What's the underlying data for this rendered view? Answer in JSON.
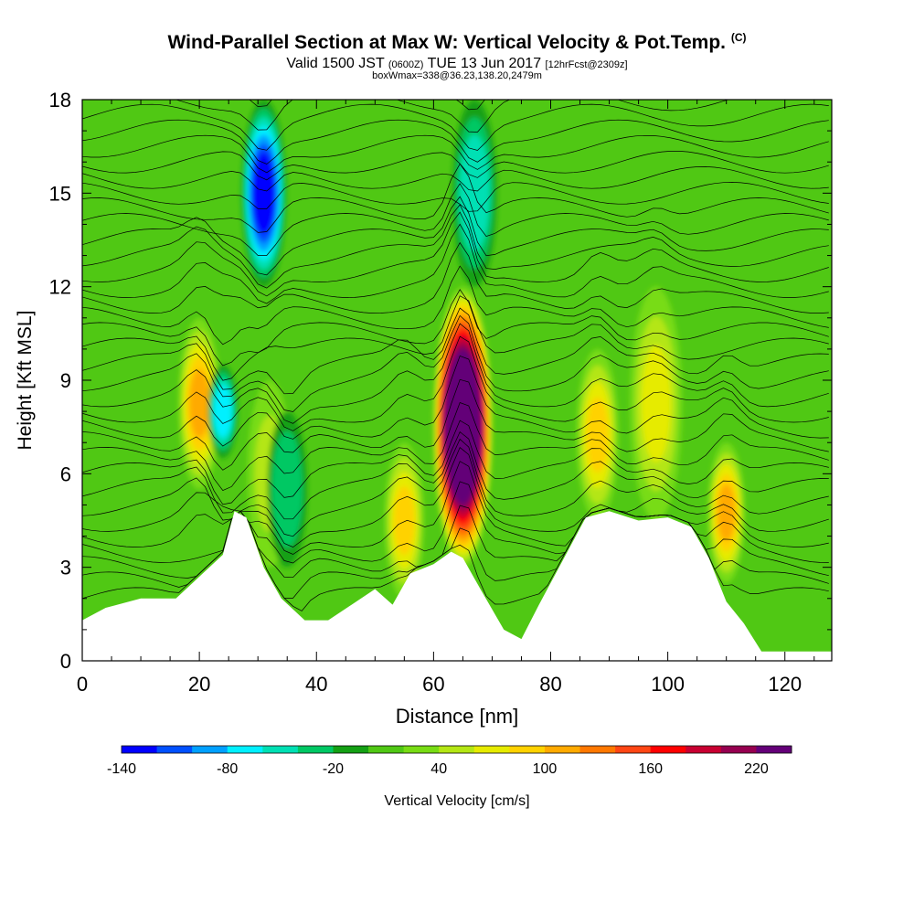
{
  "header": {
    "title": "Wind-Parallel Section at Max W: Vertical Velocity & Pot.Temp.",
    "copyright": "(C)",
    "valid_prefix": "Valid 1500 JST",
    "valid_utc": "(0600Z)",
    "valid_date": "TUE 13 Jun 2017",
    "forecast_info": "[12hrFcst@2309z]",
    "subtitle2": "boxWmax=338@36.23,138.20,2479m"
  },
  "chart_data": {
    "type": "heatmap",
    "title": "Wind-Parallel Section at Max W: Vertical Velocity & Pot.Temp.",
    "xlabel": "Distance [nm]",
    "ylabel": "Height [Kft MSL]",
    "xlim": [
      0,
      128
    ],
    "ylim": [
      0,
      18
    ],
    "x_ticks": [
      "0",
      "20",
      "40",
      "60",
      "80",
      "100",
      "120"
    ],
    "y_ticks": [
      "0",
      "3",
      "6",
      "9",
      "12",
      "15",
      "18"
    ],
    "x_tick_values": [
      0,
      20,
      40,
      60,
      80,
      100,
      120
    ],
    "y_tick_values": [
      0,
      3,
      6,
      9,
      12,
      15,
      18
    ],
    "colorbar": {
      "label": "Vertical Velocity [cm/s]",
      "range": [
        -140,
        240
      ],
      "tick_labels": [
        "-140",
        "-80",
        "-20",
        "40",
        "100",
        "160",
        "220"
      ],
      "tick_values": [
        -140,
        -80,
        -20,
        40,
        100,
        160,
        220
      ],
      "colors": [
        "#0000ff",
        "#0050ff",
        "#00a0ff",
        "#00f0ff",
        "#00e0b4",
        "#00c864",
        "#14a014",
        "#50c814",
        "#78dc14",
        "#b4e614",
        "#e6eb00",
        "#ffd200",
        "#ffaa00",
        "#ff7800",
        "#ff4614",
        "#ff0000",
        "#c80032",
        "#960050",
        "#640078"
      ]
    },
    "updrafts": [
      {
        "x": 20,
        "z_min": 5.5,
        "z_max": 11,
        "w_max": 100
      },
      {
        "x": 32,
        "z_min": 3,
        "z_max": 9,
        "w_max": 50
      },
      {
        "x": 55,
        "z_min": 2,
        "z_max": 7,
        "w_max": 90
      },
      {
        "x": 65,
        "z_min": 3,
        "z_max": 12,
        "w_max": 338
      },
      {
        "x": 88,
        "z_min": 4.5,
        "z_max": 10,
        "w_max": 90
      },
      {
        "x": 98,
        "z_min": 4.5,
        "z_max": 12,
        "w_max": 60
      },
      {
        "x": 110,
        "z_min": 2.5,
        "z_max": 7,
        "w_max": 100
      }
    ],
    "downdrafts": [
      {
        "x": 31,
        "z_min": 12,
        "z_max": 18,
        "w_min": -140
      },
      {
        "x": 24,
        "z_min": 6.5,
        "z_max": 9.5,
        "w_min": -80
      },
      {
        "x": 67,
        "z_min": 12,
        "z_max": 18,
        "w_min": -60
      },
      {
        "x": 35,
        "z_min": 3,
        "z_max": 8,
        "w_min": -40
      }
    ],
    "terrain_kft": {
      "x": [
        0,
        4,
        10,
        16,
        20,
        24,
        26,
        28,
        31,
        34,
        38,
        42,
        46,
        50,
        53,
        56,
        60,
        63,
        65,
        68,
        72,
        75,
        78,
        82,
        86,
        90,
        95,
        100,
        104,
        107,
        110,
        113,
        116,
        120,
        124,
        128
      ],
      "z": [
        1.3,
        1.7,
        2.0,
        2.0,
        2.7,
        3.4,
        4.8,
        4.6,
        3.0,
        2.0,
        1.3,
        1.3,
        1.8,
        2.3,
        1.8,
        2.8,
        3.1,
        3.5,
        3.3,
        2.3,
        1.0,
        0.7,
        1.8,
        3.2,
        4.6,
        4.8,
        4.5,
        4.6,
        4.3,
        3.3,
        1.9,
        1.2,
        0.3,
        0.3,
        0.3,
        0.3
      ]
    },
    "theta_contour_interval_K": 1
  }
}
